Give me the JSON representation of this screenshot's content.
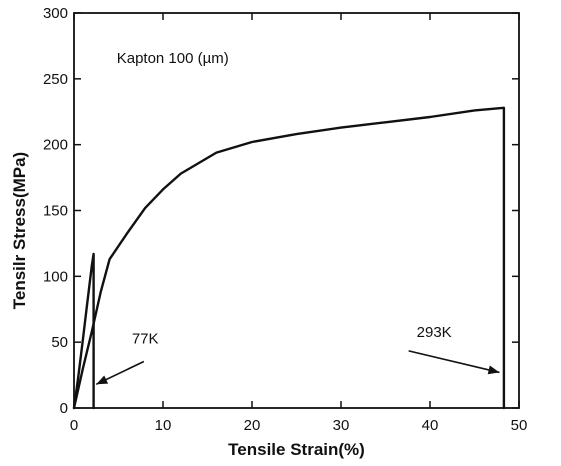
{
  "chart_data": {
    "type": "line",
    "title": "",
    "xlabel": "Tensile Strain(%)",
    "ylabel": "Tensilr Stress(MPa)",
    "xlim": [
      0,
      50
    ],
    "ylim": [
      0,
      300
    ],
    "xticks": [
      0,
      10,
      20,
      30,
      40,
      50
    ],
    "yticks": [
      0,
      50,
      100,
      150,
      200,
      250,
      300
    ],
    "grid": false,
    "series": [
      {
        "name": "77K",
        "x": [
          0,
          0.5,
          1.0,
          1.5,
          2.0,
          2.2,
          2.2
        ],
        "y": [
          0,
          25,
          52,
          80,
          108,
          117,
          0
        ]
      },
      {
        "name": "293K",
        "x": [
          0,
          1,
          2,
          3,
          4,
          6,
          8,
          10,
          12,
          14,
          16,
          20,
          25,
          30,
          35,
          40,
          45,
          48.3,
          48.3
        ],
        "y": [
          0,
          30,
          58,
          88,
          113,
          133,
          152,
          166,
          178,
          186,
          194,
          202,
          208,
          213,
          217,
          221,
          226,
          228,
          0
        ]
      }
    ],
    "annotations": [
      {
        "text": "Kapton 100 (µm)",
        "x": 4.8,
        "y": 262
      },
      {
        "text": "77K",
        "x": 6.5,
        "y": 49,
        "arrow_to": [
          2.5,
          18
        ]
      },
      {
        "text": "293K",
        "x": 38.5,
        "y": 54,
        "arrow_to": [
          47.8,
          27
        ]
      }
    ]
  }
}
